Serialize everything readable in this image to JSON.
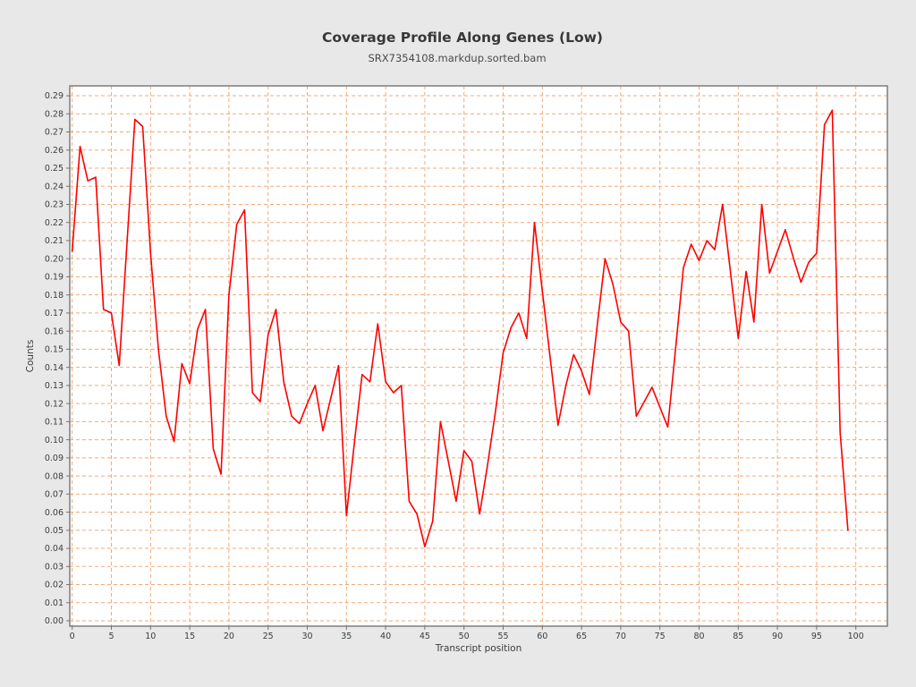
{
  "header": {
    "title": "Coverage Profile Along Genes (Low)",
    "subtitle": "SRX7354108.markdup.sorted.bam"
  },
  "chart_data": {
    "type": "line",
    "title": "Coverage Profile Along Genes (Low)",
    "subtitle": "SRX7354108.markdup.sorted.bam",
    "xlabel": "Transcript position",
    "ylabel": "Counts",
    "legend": "none",
    "grid": "dashed",
    "xlim": [
      0,
      104
    ],
    "ylim": [
      0,
      0.2965
    ],
    "x_ticks": [
      0,
      5,
      10,
      15,
      20,
      25,
      30,
      35,
      40,
      45,
      50,
      55,
      60,
      65,
      70,
      75,
      80,
      85,
      90,
      95,
      100
    ],
    "y_tick_step": 0.01,
    "y_tick_min": 0.0,
    "y_tick_max": 0.29,
    "x": [
      0,
      1,
      2,
      3,
      4,
      5,
      6,
      7,
      8,
      9,
      10,
      11,
      12,
      13,
      14,
      15,
      16,
      17,
      18,
      19,
      20,
      21,
      22,
      23,
      24,
      25,
      26,
      27,
      28,
      29,
      30,
      31,
      32,
      33,
      34,
      35,
      36,
      37,
      38,
      39,
      40,
      41,
      42,
      43,
      44,
      45,
      46,
      47,
      48,
      49,
      50,
      51,
      52,
      53,
      54,
      55,
      56,
      57,
      58,
      59,
      60,
      61,
      62,
      63,
      64,
      65,
      66,
      67,
      68,
      69,
      70,
      71,
      72,
      73,
      74,
      75,
      76,
      77,
      78,
      79,
      80,
      81,
      82,
      83,
      84,
      85,
      86,
      87,
      88,
      89,
      90,
      91,
      92,
      93,
      94,
      95,
      96,
      97,
      98,
      99
    ],
    "values": [
      0.204,
      0.262,
      0.243,
      0.245,
      0.172,
      0.17,
      0.141,
      0.209,
      0.277,
      0.273,
      0.203,
      0.15,
      0.113,
      0.099,
      0.142,
      0.131,
      0.161,
      0.172,
      0.095,
      0.081,
      0.18,
      0.219,
      0.227,
      0.126,
      0.121,
      0.158,
      0.172,
      0.132,
      0.113,
      0.109,
      0.12,
      0.13,
      0.105,
      0.123,
      0.141,
      0.058,
      0.098,
      0.136,
      0.132,
      0.164,
      0.132,
      0.126,
      0.13,
      0.066,
      0.059,
      0.041,
      0.055,
      0.11,
      0.088,
      0.066,
      0.094,
      0.088,
      0.059,
      0.086,
      0.115,
      0.148,
      0.162,
      0.17,
      0.156,
      0.22,
      0.182,
      0.145,
      0.108,
      0.13,
      0.147,
      0.138,
      0.125,
      0.163,
      0.2,
      0.186,
      0.165,
      0.16,
      0.113,
      0.121,
      0.129,
      0.118,
      0.107,
      0.15,
      0.195,
      0.208,
      0.199,
      0.21,
      0.205,
      0.23,
      0.193,
      0.156,
      0.193,
      0.165,
      0.23,
      0.192,
      0.204,
      0.216,
      0.201,
      0.187,
      0.198,
      0.203,
      0.274,
      0.282,
      0.104,
      0.05
    ],
    "colors": {
      "line": "#fe0000",
      "grid": "#f0aa78",
      "border": "#757575",
      "tick_text": "#3c3c3c",
      "background": "#e8e8e8",
      "plot_background": "#ffffff"
    }
  }
}
